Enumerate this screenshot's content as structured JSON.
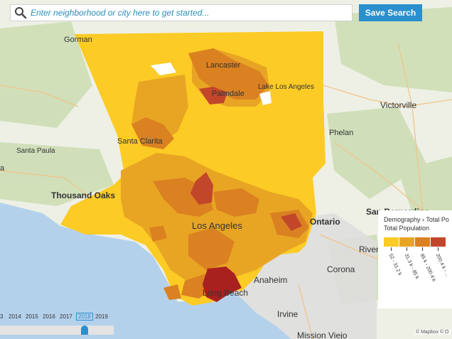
{
  "search": {
    "placeholder": "Enter neighborhood or city here to get started...",
    "value": ""
  },
  "save_button": {
    "label": "Save Search"
  },
  "map_labels": {
    "gorman": "Gorman",
    "lancaster": "Lancaster",
    "palmdale": "Palmdale",
    "lake_los_angeles": "Lake Los Angeles",
    "victorville": "Victorville",
    "phelan": "Phelan",
    "santa_paula": "Santa Paula",
    "santa_clarita": "Santa Clarita",
    "thousand_oaks": "Thousand Oaks",
    "los_angeles": "Los Angeles",
    "san_bernardino": "San Bernardino",
    "ontario": "Ontario",
    "riverside": "Riverside",
    "corona": "Corona",
    "anaheim": "Anaheim",
    "long_beach": "Long Beach",
    "irvine": "Irvine",
    "mission_viejo": "Mission Viejo",
    "edge_left": "a"
  },
  "legend": {
    "breadcrumb": "Demography  ›  Total Po",
    "title": "Total Population",
    "bins": [
      {
        "label": "52 - 31.2 k",
        "color": "#fccb25"
      },
      {
        "label": "31.3 k - 85 k",
        "color": "#e8a524"
      },
      {
        "label": "85 k - 200.4 k",
        "color": "#da8121"
      },
      {
        "label": "200.4 k - ...",
        "color": "#c2472a"
      }
    ],
    "colors": {
      "yellow": "#fccb25",
      "amber": "#e8a524",
      "orange": "#da8121",
      "red": "#c2472a",
      "darkred": "#a8211f"
    }
  },
  "timeline": {
    "years": [
      "3",
      "2014",
      "2015",
      "2016",
      "2017",
      "2018",
      "2019"
    ],
    "selected": "2018"
  },
  "attribution": "© Mapbox © O"
}
